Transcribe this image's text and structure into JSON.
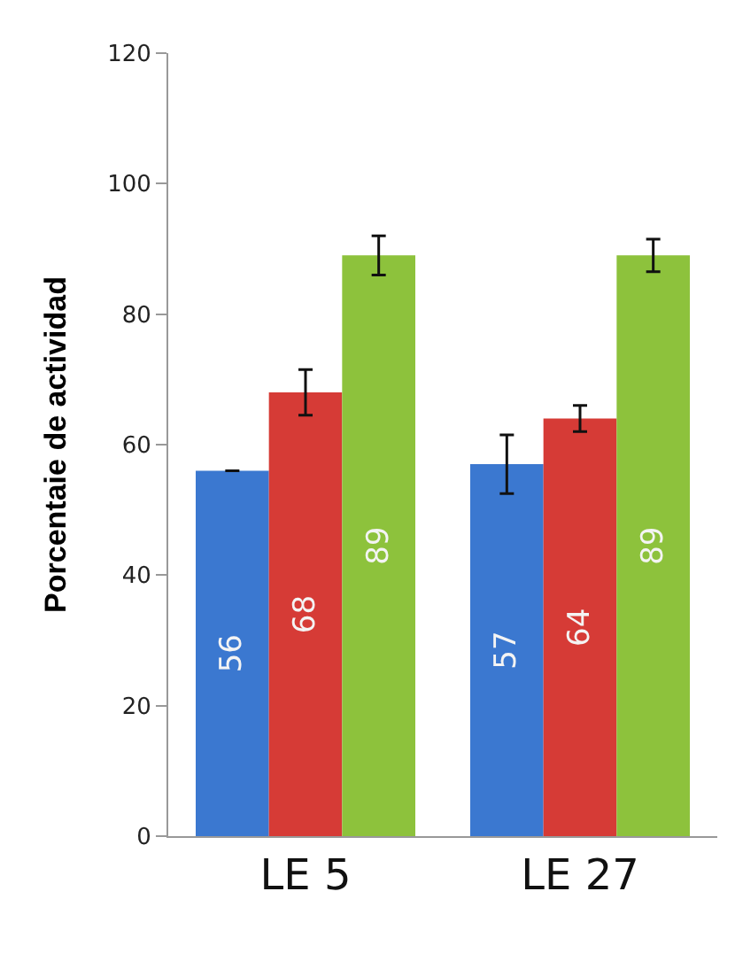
{
  "chart_data": {
    "type": "bar",
    "ylabel": "Porcentaie de actividad",
    "categories": [
      "LE 5",
      "LE 27"
    ],
    "series": [
      {
        "color": "#3b78d0",
        "values": [
          56,
          57
        ],
        "errors": [
          0,
          4.5
        ]
      },
      {
        "color": "#d63b36",
        "values": [
          68,
          64
        ],
        "errors": [
          3.5,
          2
        ]
      },
      {
        "color": "#8dc23c",
        "values": [
          89,
          89
        ],
        "errors": [
          3,
          2.5
        ]
      }
    ],
    "ylim": [
      0,
      120
    ],
    "yticks": [
      0,
      20,
      40,
      60,
      80,
      100,
      120
    ],
    "grid": false,
    "data_labels": true
  }
}
